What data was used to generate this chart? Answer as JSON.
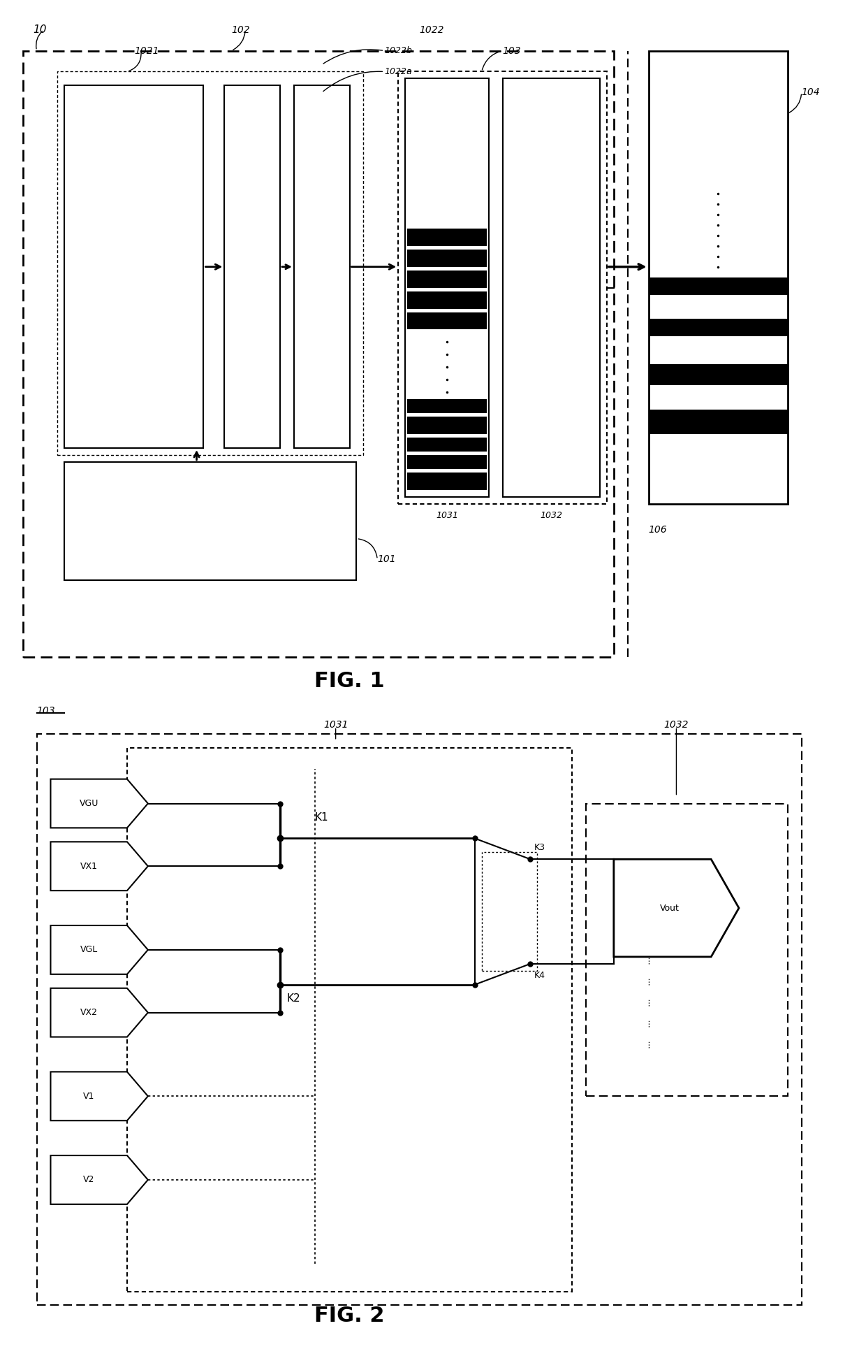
{
  "fig_width": 12.4,
  "fig_height": 19.5,
  "bg_color": "#ffffff",
  "lc": "#000000",
  "fig1_label": "FIG. 1",
  "fig2_label": "FIG. 2",
  "label_10": "10",
  "label_101": "101",
  "label_102": "102",
  "label_1021": "1021",
  "label_1022": "1022",
  "label_1022a": "1022a",
  "label_1022b": "1022b",
  "label_103": "103",
  "label_1031": "1031",
  "label_1032": "1032",
  "label_104": "104",
  "label_106": "106",
  "label_103_fig2": "103",
  "label_1031_fig2": "1031",
  "label_1032_fig2": "1032",
  "label_VGU": "VGU",
  "label_VX1": "VX1",
  "label_VGL": "VGL",
  "label_VX2": "VX2",
  "label_V1": "V1",
  "label_V2": "V2",
  "label_K1": "K1",
  "label_K2": "K2",
  "label_K3": "K3",
  "label_K4": "K4",
  "label_Vout": "Vout"
}
